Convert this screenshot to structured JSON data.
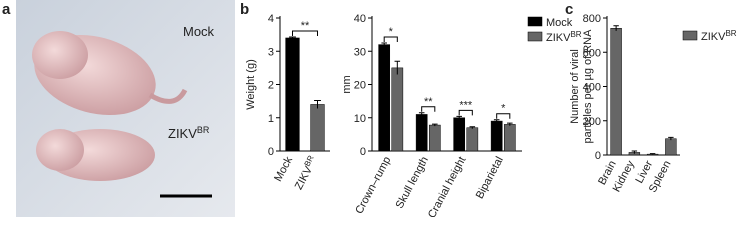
{
  "panels": {
    "a": "a",
    "b": "b",
    "c": "c"
  },
  "photo": {
    "labels": [
      "Mock",
      "ZIKV"
    ],
    "label_sup": [
      null,
      "BR"
    ]
  },
  "chart_data": [
    {
      "type": "bar",
      "ylabel": [
        "Weight (g)"
      ],
      "categories": [
        "Mock",
        "ZIKV"
      ],
      "category_sup": [
        null,
        "BR"
      ],
      "values": [
        3.4,
        1.4
      ],
      "errors": [
        0.03,
        0.12
      ],
      "colors": [
        "#000000",
        "#666666"
      ],
      "significance": "**",
      "ylim": [
        0,
        4
      ],
      "yticks": [
        0,
        1,
        2,
        3,
        4
      ],
      "grid": false
    },
    {
      "type": "bar",
      "ylabel": [
        "mm"
      ],
      "categories": [
        "Crown–rump",
        "Skull length",
        "Cranial height",
        "Biparietal"
      ],
      "series": [
        {
          "name": "Mock",
          "color": "#000000",
          "values": [
            32,
            11,
            10,
            9
          ],
          "errors": [
            0.5,
            0.5,
            0.4,
            0.4
          ]
        },
        {
          "name": "ZIKV",
          "name_sup": "BR",
          "color": "#666666",
          "values": [
            25,
            7.8,
            7,
            8
          ],
          "errors": [
            2,
            0.3,
            0.3,
            0.4
          ]
        }
      ],
      "significance": [
        "*",
        "**",
        "***",
        "*"
      ],
      "ylim": [
        0,
        40
      ],
      "yticks": [
        0,
        10,
        20,
        30,
        40
      ],
      "grid": false,
      "legend": "top-right"
    },
    {
      "type": "bar",
      "ylabel": [
        "Number of viral",
        "particles per µg of RNA"
      ],
      "categories": [
        "Brain",
        "Kidney",
        "Liver",
        "Spleen"
      ],
      "series": [
        {
          "name": "ZIKV",
          "name_sup": "BR",
          "color": "#666666",
          "values": [
            740,
            15,
            5,
            95
          ],
          "errors": [
            15,
            8,
            3,
            8
          ]
        }
      ],
      "ylim": [
        0,
        800
      ],
      "yticks": [
        0,
        200,
        400,
        600,
        800
      ],
      "grid": false,
      "legend": "top-right"
    }
  ]
}
